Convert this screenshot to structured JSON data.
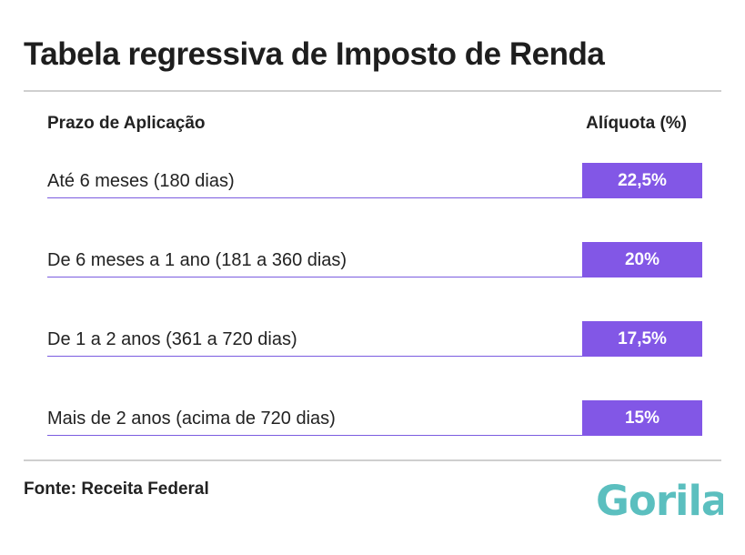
{
  "title": "Tabela regressiva de Imposto de Renda",
  "table": {
    "headers": {
      "term": "Prazo de Aplicação",
      "rate": "Alíquota (%)"
    },
    "rows": [
      {
        "term": "Até 6 meses (180 dias)",
        "rate": "22,5%"
      },
      {
        "term": "De 6 meses a 1 ano (181 a 360 dias)",
        "rate": "20%"
      },
      {
        "term": "De 1 a 2 anos (361 a 720 dias)",
        "rate": "17,5%"
      },
      {
        "term": "Mais de 2 anos (acima de 720 dias)",
        "rate": "15%"
      }
    ]
  },
  "source": "Fonte: Receita Federal",
  "logo": {
    "text": "Gorila",
    "color": "#5bbfbf"
  },
  "colors": {
    "accent": "#8257e6",
    "rule": "#cfcfcf"
  }
}
